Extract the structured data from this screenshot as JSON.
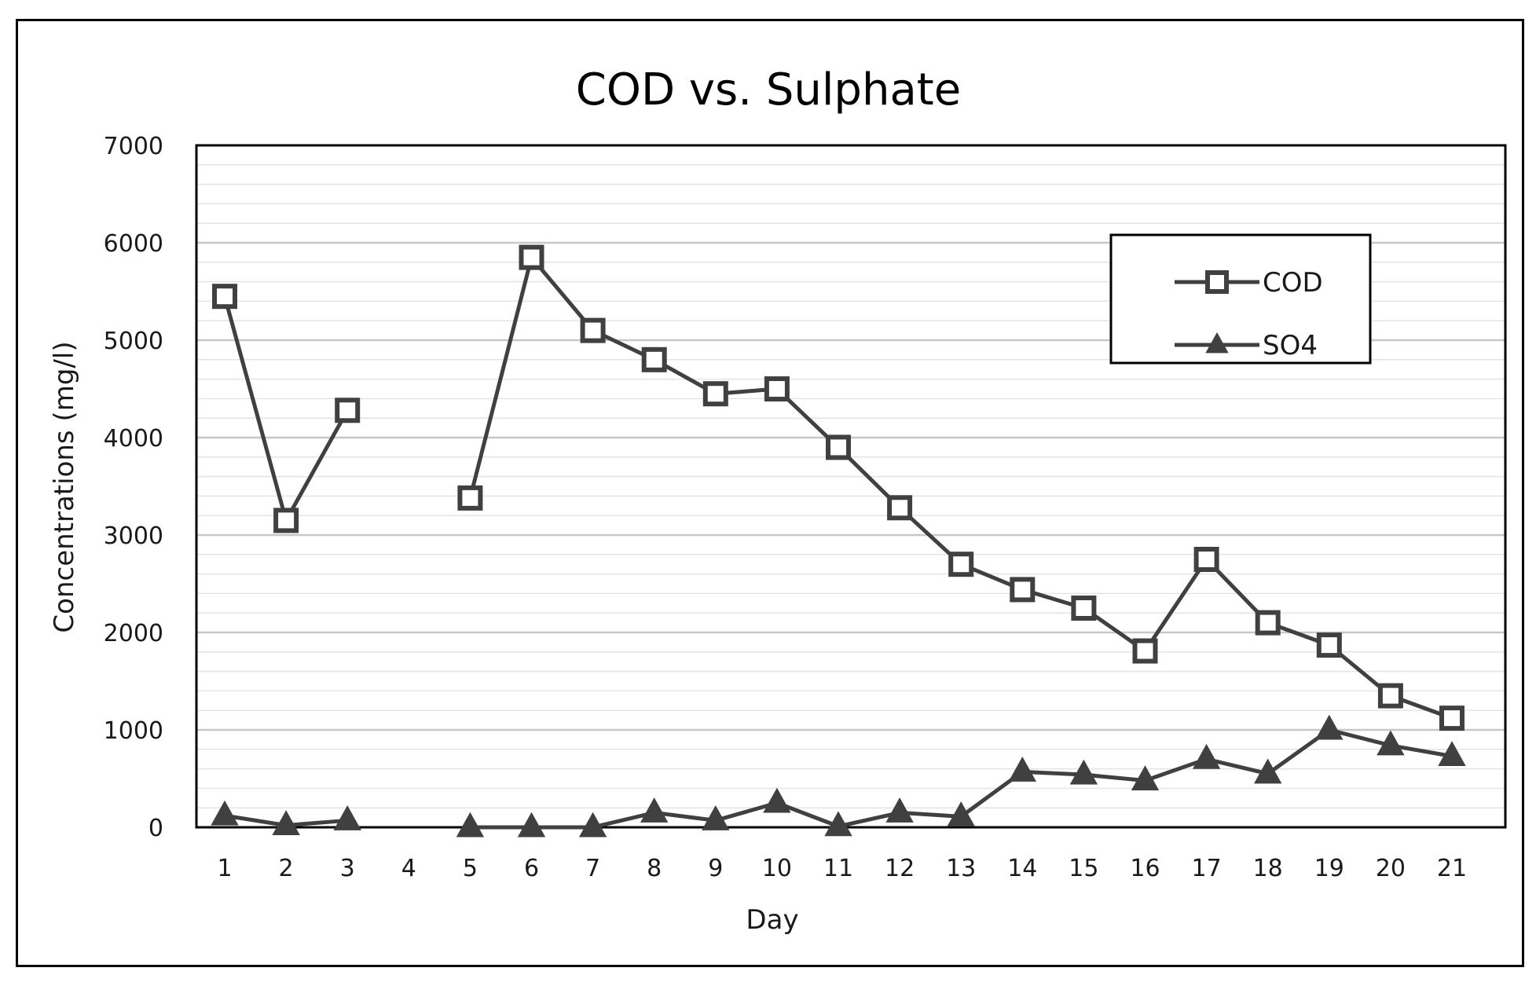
{
  "chart_data": {
    "type": "line",
    "title": "COD vs. Sulphate",
    "xlabel": "Day",
    "ylabel": "Concentrations (mg/l)",
    "ylim": [
      0,
      7000
    ],
    "yticks": [
      0,
      1000,
      2000,
      3000,
      4000,
      5000,
      6000,
      7000
    ],
    "minor_grid_step": 200,
    "categories": [
      "1",
      "2",
      "3",
      "4",
      "5",
      "6",
      "7",
      "8",
      "9",
      "10",
      "11",
      "12",
      "13",
      "14",
      "15",
      "16",
      "17",
      "18",
      "19",
      "20",
      "21"
    ],
    "legend_position": "top-right",
    "colors": {
      "line": "#404040",
      "grid_major": "#c8c8c8",
      "grid_minor": "#e4e4e4",
      "frame": "#000000"
    },
    "series": [
      {
        "name": "COD",
        "marker": "square",
        "values": [
          5450,
          3150,
          4280,
          null,
          3380,
          5850,
          5100,
          4800,
          4450,
          4500,
          3900,
          3280,
          2700,
          2440,
          2250,
          1810,
          2750,
          2100,
          1870,
          1350,
          1120
        ]
      },
      {
        "name": "SO4",
        "marker": "triangle",
        "values": [
          120,
          20,
          70,
          null,
          0,
          0,
          0,
          150,
          70,
          250,
          10,
          150,
          110,
          570,
          540,
          480,
          700,
          550,
          1000,
          840,
          730
        ]
      }
    ]
  }
}
